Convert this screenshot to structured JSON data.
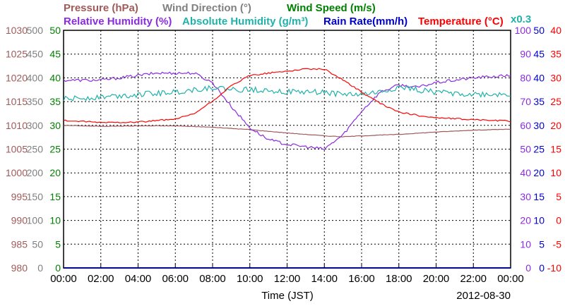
{
  "chart_data": {
    "type": "line",
    "date_label": "2012-08-30",
    "xlabel": "Time (JST)",
    "x_ticks": [
      "00:00",
      "02:00",
      "04:00",
      "06:00",
      "08:00",
      "10:00",
      "12:00",
      "14:00",
      "16:00",
      "18:00",
      "20:00",
      "22:00",
      "00:00"
    ],
    "x_range_hours": [
      0,
      24
    ],
    "grid": true,
    "legend": [
      {
        "id": "pressure",
        "text": "Pressure (hPa)",
        "color": "#a05a5a"
      },
      {
        "id": "wind_dir",
        "text": "Wind Direction (°)",
        "color": "#808080"
      },
      {
        "id": "wind_speed",
        "text": "Wind Speed (m/s)",
        "color": "#008000"
      },
      {
        "id": "rh",
        "text": "Relative Humidity (%)",
        "color": "#8a2be2"
      },
      {
        "id": "ah",
        "text": "Absolute Humidity (g/m³)",
        "color": "#20b2aa"
      },
      {
        "id": "rain",
        "text": "Rain Rate(mm/h)",
        "color": "#0000cc"
      },
      {
        "id": "temp",
        "text": "Temperature (°C)",
        "color": "#ff0000"
      }
    ],
    "ah_scale_label": "x0.3",
    "axes": {
      "pressure": {
        "ticks": [
          "1030",
          "1025",
          "1020",
          "1015",
          "1010",
          "1005",
          "1000",
          "995",
          "990",
          "985",
          "980"
        ],
        "range": [
          980,
          1030
        ],
        "color": "#a05a5a"
      },
      "wind_dir": {
        "ticks": [
          "500",
          "450",
          "400",
          "350",
          "300",
          "250",
          "200",
          "150",
          "100",
          "50",
          "0"
        ],
        "range": [
          0,
          500
        ],
        "color": "#808080"
      },
      "wind_speed": {
        "ticks": [
          "50",
          "45",
          "40",
          "35",
          "30",
          "25",
          "20",
          "15",
          "10",
          "5",
          "0"
        ],
        "range": [
          0,
          50
        ],
        "color": "#008000"
      },
      "rh": {
        "ticks": [
          "100",
          "90",
          "80",
          "70",
          "60",
          "50",
          "40",
          "30",
          "20",
          "10",
          "0"
        ],
        "range": [
          0,
          100
        ],
        "color": "#8a2be2"
      },
      "rain": {
        "ticks": [
          "50",
          "45",
          "40",
          "35",
          "30",
          "25",
          "20",
          "15",
          "10",
          "5",
          "0"
        ],
        "range": [
          0,
          50
        ],
        "color": "#0000cc"
      },
      "temp": {
        "ticks": [
          "40",
          "35",
          "30",
          "25",
          "20",
          "15",
          "10",
          "5",
          "0",
          "-5",
          "-10"
        ],
        "range": [
          -10,
          40
        ],
        "color": "#ff0000"
      }
    },
    "series": [
      {
        "id": "pressure",
        "axis": "pressure",
        "hours": [
          0,
          2,
          4,
          6,
          8,
          10,
          12,
          14,
          15,
          16,
          18,
          20,
          22,
          24
        ],
        "values": [
          1010.0,
          1009.8,
          1009.9,
          1009.9,
          1009.6,
          1009.1,
          1008.4,
          1007.8,
          1007.6,
          1007.8,
          1008.1,
          1008.6,
          1009.0,
          1009.2
        ]
      },
      {
        "id": "rh",
        "axis": "rh",
        "hours": [
          0,
          2,
          4,
          5,
          6,
          7,
          8,
          9,
          10,
          11,
          12,
          13,
          14,
          15,
          16,
          17,
          18,
          19,
          20,
          22,
          24
        ],
        "values": [
          79,
          79,
          81,
          82,
          82,
          82,
          78,
          68,
          59,
          54,
          52,
          51,
          50,
          56,
          66,
          74,
          77,
          76,
          78,
          80,
          81
        ]
      },
      {
        "id": "ah",
        "axis": "ah",
        "hours": [
          0,
          2,
          4,
          6,
          7,
          8,
          9,
          10,
          11,
          12,
          13,
          14,
          15,
          16,
          17,
          18,
          19,
          20,
          22,
          24
        ],
        "values": [
          71,
          72,
          73,
          74,
          75,
          76,
          75,
          75,
          75,
          74,
          74,
          74,
          73,
          73,
          74,
          76,
          75,
          74,
          73,
          73
        ]
      },
      {
        "id": "temp",
        "axis": "temp",
        "hours": [
          0,
          2,
          4,
          6,
          7,
          8,
          9,
          10,
          11,
          12,
          13,
          14,
          15,
          16,
          17,
          18,
          19,
          20,
          22,
          24
        ],
        "values": [
          21.0,
          20.6,
          20.7,
          21.3,
          22.4,
          25.1,
          28.3,
          30.5,
          31.0,
          31.4,
          31.9,
          31.8,
          29.6,
          27.0,
          24.6,
          22.8,
          22.1,
          21.6,
          21.2,
          20.9
        ]
      },
      {
        "id": "rain",
        "axis": "rain",
        "hours": [
          0,
          24
        ],
        "values": [
          0,
          0
        ]
      }
    ],
    "notes": []
  }
}
